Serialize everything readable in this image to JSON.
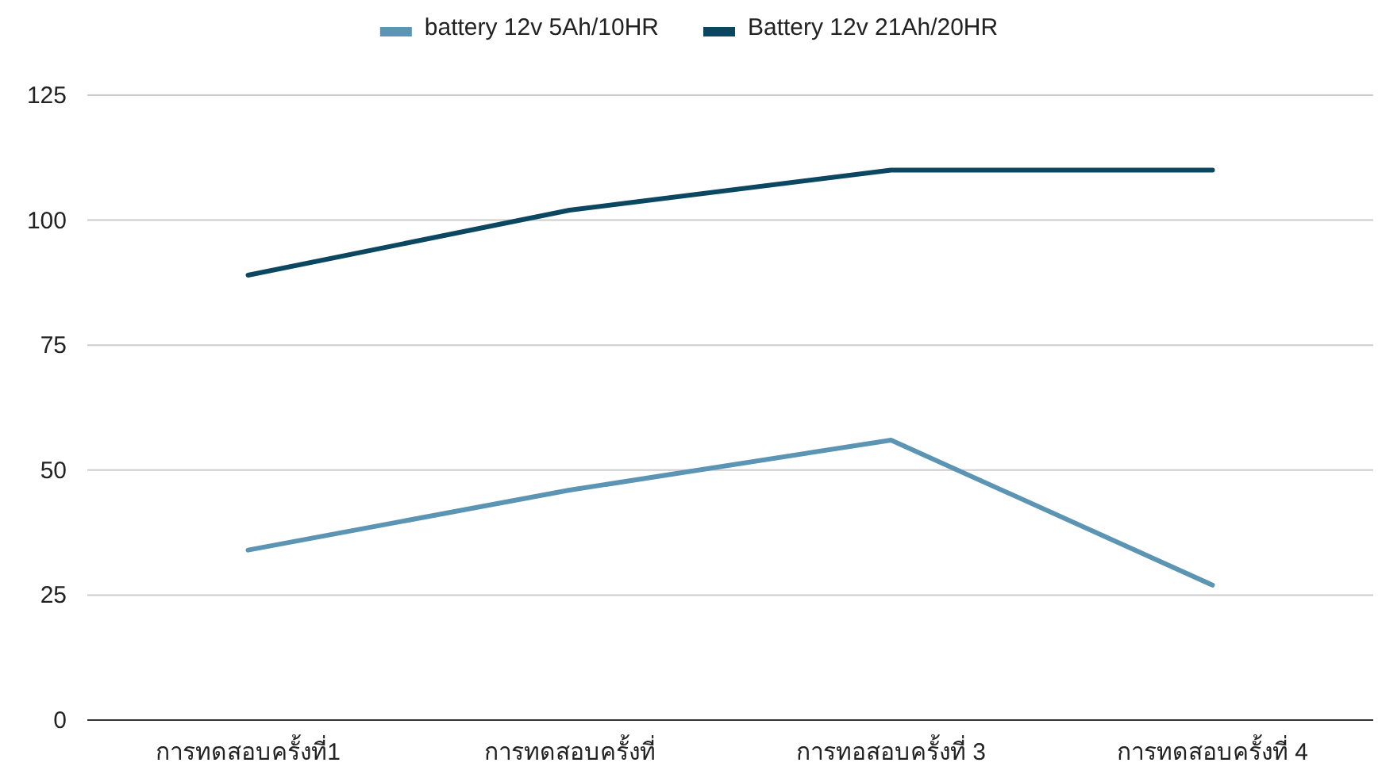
{
  "chart_data": {
    "type": "line",
    "categories": [
      "การทดสอบครั้งที่1",
      "การทดสอบครั้งที่",
      "การทอสอบครั้งที่ 3",
      "การทดสอบครั้งที่ 4"
    ],
    "series": [
      {
        "name": "battery 12v 5Ah/10HR",
        "color": "#5b95b3",
        "values": [
          34,
          46,
          56,
          27
        ]
      },
      {
        "name": "Battery 12v 21Ah/20HR",
        "color": "#0b4760",
        "values": [
          89,
          102,
          110,
          110
        ]
      }
    ],
    "ylim": [
      0,
      125
    ],
    "yticks": [
      0,
      25,
      50,
      75,
      100,
      125
    ],
    "grid": "y",
    "legend": "top",
    "line_style": "solid",
    "marker": "none"
  }
}
